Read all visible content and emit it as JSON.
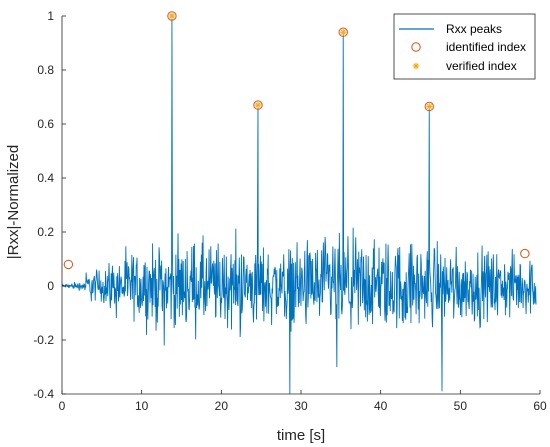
{
  "chart_data": {
    "type": "line",
    "xlabel": "time [s]",
    "ylabel": "|Rxx|-Normalized",
    "xlim": [
      0,
      60
    ],
    "ylim": [
      -0.4,
      1
    ],
    "xticks": [
      "0",
      "10",
      "20",
      "30",
      "40",
      "50",
      "60"
    ],
    "yticks": [
      "-0.4",
      "-0.2",
      "0",
      "0.2",
      "0.4",
      "0.6",
      "0.8",
      "1"
    ],
    "grid": false,
    "legend_position": "top-right",
    "legend": [
      "Rxx peaks",
      "identified index",
      "verified index"
    ],
    "colors": {
      "line": "#0072BD",
      "circle": "#D95319",
      "star": "#EDB120",
      "axis": "#262626"
    },
    "noise": {
      "x_range": [
        0,
        59.5
      ],
      "sample_count": 1100,
      "envelope": [
        [
          0,
          0.02
        ],
        [
          1,
          0.05
        ],
        [
          5,
          0.1
        ],
        [
          10,
          0.2
        ],
        [
          14,
          0.22
        ],
        [
          18,
          0.24
        ],
        [
          24,
          0.22
        ],
        [
          28,
          0.2
        ],
        [
          32,
          0.25
        ],
        [
          36,
          0.26
        ],
        [
          42,
          0.24
        ],
        [
          48,
          0.2
        ],
        [
          54,
          0.18
        ],
        [
          59.5,
          0.15
        ]
      ]
    },
    "peaks": [
      {
        "x": 13.8,
        "y": 1.0
      },
      {
        "x": 24.6,
        "y": 0.67
      },
      {
        "x": 35.3,
        "y": 0.94
      },
      {
        "x": 46.1,
        "y": 0.665
      }
    ],
    "notable_spikes": [
      {
        "x": 28.6,
        "y": -0.4
      },
      {
        "x": 47.7,
        "y": -0.39
      },
      {
        "x": 34.5,
        "y": -0.3
      }
    ],
    "series": [
      {
        "name": "identified index",
        "marker": "circle",
        "points": [
          {
            "x": 0.8,
            "y": 0.08
          },
          {
            "x": 13.8,
            "y": 1.0
          },
          {
            "x": 24.6,
            "y": 0.67
          },
          {
            "x": 35.3,
            "y": 0.94
          },
          {
            "x": 46.1,
            "y": 0.665
          },
          {
            "x": 58.1,
            "y": 0.12
          }
        ]
      },
      {
        "name": "verified index",
        "marker": "star",
        "points": [
          {
            "x": 13.8,
            "y": 1.0
          },
          {
            "x": 24.6,
            "y": 0.67
          },
          {
            "x": 35.3,
            "y": 0.94
          },
          {
            "x": 46.1,
            "y": 0.665
          }
        ]
      }
    ]
  }
}
